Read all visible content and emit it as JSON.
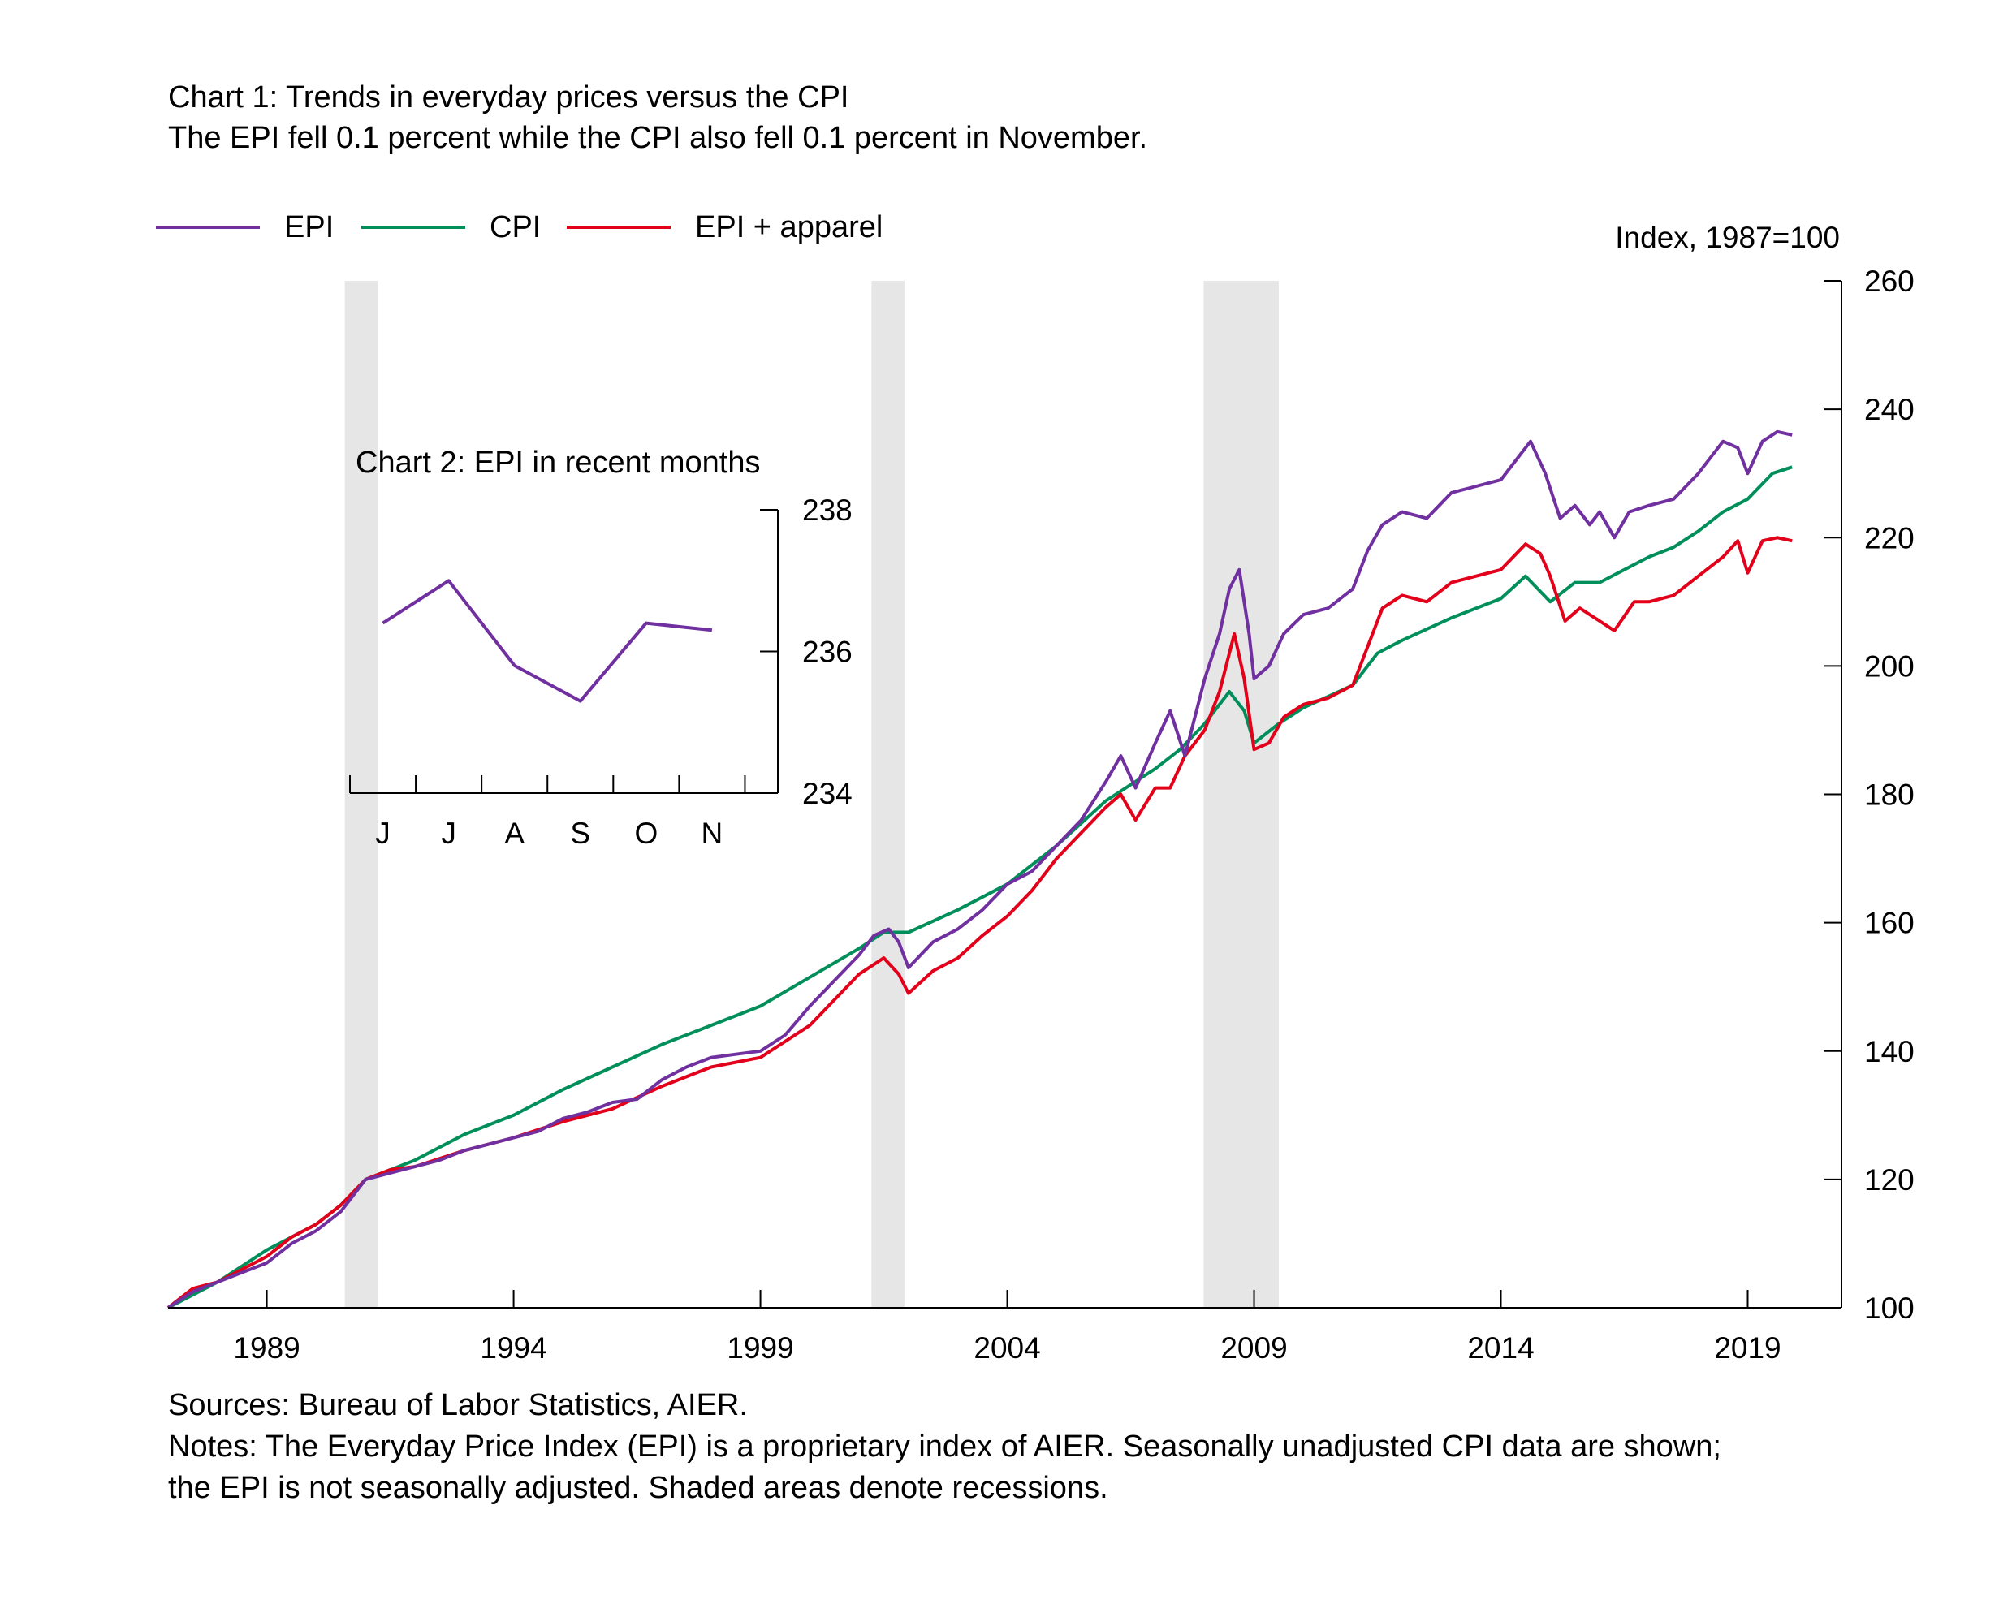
{
  "header": {
    "title": "Chart 1: Trends in everyday prices versus the CPI",
    "subtitle": "The EPI fell 0.1 percent while the CPI also fell 0.1 percent in November."
  },
  "footer": {
    "sources": "Sources: Bureau of Labor Statistics, AIER.",
    "notes_line1": "Notes: The Everyday Price Index (EPI) is a proprietary index of AIER. Seasonally unadjusted CPI data are shown;",
    "notes_line2": "the EPI is not seasonally adjusted. Shaded areas denote recessions."
  },
  "colors": {
    "epi": "#7030a0",
    "cpi": "#008f5a",
    "epi_apparel": "#e2001a",
    "recession": "#e6e6e6",
    "axis": "#000000"
  },
  "chart_data": [
    {
      "type": "line",
      "title": "Chart 1: Trends in everyday prices versus the CPI",
      "ylabel": "Index, 1987=100",
      "xlabel": "",
      "xlim": [
        1987.0,
        2020.9
      ],
      "ylim": [
        100,
        260
      ],
      "x_ticks": [
        1989,
        1994,
        1999,
        2004,
        2009,
        2014,
        2019
      ],
      "x_tick_labels": [
        "1989",
        "1994",
        "1999",
        "2004",
        "2009",
        "2014",
        "2019"
      ],
      "y_ticks": [
        100,
        120,
        140,
        160,
        180,
        200,
        220,
        240,
        260
      ],
      "y_tick_labels": [
        "100",
        "120",
        "140",
        "160",
        "180",
        "200",
        "220",
        "240",
        "260"
      ],
      "legend_position": "top-left",
      "grid": false,
      "recessions": [
        {
          "start": 1990.58,
          "end": 1991.25
        },
        {
          "start": 2001.25,
          "end": 2001.92
        },
        {
          "start": 2007.98,
          "end": 2009.5
        }
      ],
      "series": [
        {
          "name": "EPI",
          "color": "#7030a0",
          "points": [
            [
              1987.0,
              100.0
            ],
            [
              1987.5,
              102.5
            ],
            [
              1988.0,
              104.0
            ],
            [
              1988.5,
              105.5
            ],
            [
              1989.0,
              107.0
            ],
            [
              1989.5,
              110.0
            ],
            [
              1990.0,
              112.0
            ],
            [
              1990.5,
              115.0
            ],
            [
              1991.0,
              120.0
            ],
            [
              1991.5,
              121.0
            ],
            [
              1992.0,
              122.0
            ],
            [
              1992.5,
              123.0
            ],
            [
              1993.0,
              124.5
            ],
            [
              1993.5,
              125.5
            ],
            [
              1994.0,
              126.5
            ],
            [
              1994.5,
              127.5
            ],
            [
              1995.0,
              129.5
            ],
            [
              1995.5,
              130.5
            ],
            [
              1996.0,
              132.0
            ],
            [
              1996.5,
              132.5
            ],
            [
              1997.0,
              135.5
            ],
            [
              1997.5,
              137.5
            ],
            [
              1998.0,
              139.0
            ],
            [
              1998.5,
              139.5
            ],
            [
              1999.0,
              140.0
            ],
            [
              1999.5,
              142.5
            ],
            [
              2000.0,
              147.0
            ],
            [
              2000.5,
              151.0
            ],
            [
              2001.0,
              155.0
            ],
            [
              2001.3,
              158.0
            ],
            [
              2001.6,
              159.0
            ],
            [
              2001.8,
              157.0
            ],
            [
              2002.0,
              153.0
            ],
            [
              2002.5,
              157.0
            ],
            [
              2003.0,
              159.0
            ],
            [
              2003.5,
              162.0
            ],
            [
              2004.0,
              166.0
            ],
            [
              2004.5,
              168.0
            ],
            [
              2005.0,
              172.0
            ],
            [
              2005.5,
              176.0
            ],
            [
              2006.0,
              182.0
            ],
            [
              2006.3,
              186.0
            ],
            [
              2006.6,
              181.0
            ],
            [
              2007.0,
              188.0
            ],
            [
              2007.3,
              193.0
            ],
            [
              2007.6,
              186.0
            ],
            [
              2008.0,
              198.0
            ],
            [
              2008.3,
              205.0
            ],
            [
              2008.5,
              212.0
            ],
            [
              2008.7,
              215.0
            ],
            [
              2008.9,
              205.0
            ],
            [
              2009.0,
              198.0
            ],
            [
              2009.3,
              200.0
            ],
            [
              2009.6,
              205.0
            ],
            [
              2010.0,
              208.0
            ],
            [
              2010.5,
              209.0
            ],
            [
              2011.0,
              212.0
            ],
            [
              2011.3,
              218.0
            ],
            [
              2011.6,
              222.0
            ],
            [
              2012.0,
              224.0
            ],
            [
              2012.5,
              223.0
            ],
            [
              2013.0,
              227.0
            ],
            [
              2013.5,
              228.0
            ],
            [
              2014.0,
              229.0
            ],
            [
              2014.3,
              232.0
            ],
            [
              2014.6,
              235.0
            ],
            [
              2014.9,
              230.0
            ],
            [
              2015.2,
              223.0
            ],
            [
              2015.5,
              225.0
            ],
            [
              2015.8,
              222.0
            ],
            [
              2016.0,
              224.0
            ],
            [
              2016.3,
              220.0
            ],
            [
              2016.6,
              224.0
            ],
            [
              2017.0,
              225.0
            ],
            [
              2017.5,
              226.0
            ],
            [
              2018.0,
              230.0
            ],
            [
              2018.5,
              235.0
            ],
            [
              2018.8,
              234.0
            ],
            [
              2019.0,
              230.0
            ],
            [
              2019.3,
              235.0
            ],
            [
              2019.6,
              236.5
            ],
            [
              2019.9,
              236.0
            ]
          ]
        },
        {
          "name": "CPI",
          "color": "#008f5a",
          "points": [
            [
              1987.0,
              100.0
            ],
            [
              1988.0,
              104.0
            ],
            [
              1989.0,
              109.0
            ],
            [
              1990.0,
              113.0
            ],
            [
              1990.5,
              116.0
            ],
            [
              1991.0,
              120.0
            ],
            [
              1992.0,
              123.0
            ],
            [
              1993.0,
              127.0
            ],
            [
              1994.0,
              130.0
            ],
            [
              1995.0,
              134.0
            ],
            [
              1996.0,
              137.5
            ],
            [
              1997.0,
              141.0
            ],
            [
              1998.0,
              144.0
            ],
            [
              1999.0,
              147.0
            ],
            [
              2000.0,
              151.5
            ],
            [
              2001.0,
              156.0
            ],
            [
              2001.5,
              158.5
            ],
            [
              2002.0,
              158.5
            ],
            [
              2003.0,
              162.0
            ],
            [
              2004.0,
              166.0
            ],
            [
              2005.0,
              172.0
            ],
            [
              2006.0,
              179.0
            ],
            [
              2007.0,
              184.0
            ],
            [
              2007.5,
              187.0
            ],
            [
              2008.0,
              191.0
            ],
            [
              2008.5,
              196.0
            ],
            [
              2008.8,
              193.0
            ],
            [
              2009.0,
              188.0
            ],
            [
              2009.5,
              191.0
            ],
            [
              2010.0,
              193.5
            ],
            [
              2011.0,
              197.0
            ],
            [
              2011.5,
              202.0
            ],
            [
              2012.0,
              204.0
            ],
            [
              2013.0,
              207.5
            ],
            [
              2014.0,
              210.5
            ],
            [
              2014.5,
              214.0
            ],
            [
              2015.0,
              210.0
            ],
            [
              2015.5,
              213.0
            ],
            [
              2016.0,
              213.0
            ],
            [
              2016.5,
              215.0
            ],
            [
              2017.0,
              217.0
            ],
            [
              2017.5,
              218.5
            ],
            [
              2018.0,
              221.0
            ],
            [
              2018.5,
              224.0
            ],
            [
              2019.0,
              226.0
            ],
            [
              2019.5,
              230.0
            ],
            [
              2019.9,
              231.0
            ]
          ]
        },
        {
          "name": "EPI + apparel",
          "color": "#e2001a",
          "points": [
            [
              1987.0,
              100.0
            ],
            [
              1987.5,
              103.0
            ],
            [
              1988.0,
              104.0
            ],
            [
              1988.5,
              106.0
            ],
            [
              1989.0,
              108.0
            ],
            [
              1989.5,
              111.0
            ],
            [
              1990.0,
              113.0
            ],
            [
              1990.5,
              116.0
            ],
            [
              1991.0,
              120.0
            ],
            [
              1991.5,
              121.5
            ],
            [
              1992.0,
              122.0
            ],
            [
              1993.0,
              124.5
            ],
            [
              1994.0,
              126.5
            ],
            [
              1995.0,
              129.0
            ],
            [
              1996.0,
              131.0
            ],
            [
              1997.0,
              134.5
            ],
            [
              1998.0,
              137.5
            ],
            [
              1999.0,
              139.0
            ],
            [
              2000.0,
              144.0
            ],
            [
              2000.5,
              148.0
            ],
            [
              2001.0,
              152.0
            ],
            [
              2001.5,
              154.5
            ],
            [
              2001.8,
              152.0
            ],
            [
              2002.0,
              149.0
            ],
            [
              2002.5,
              152.5
            ],
            [
              2003.0,
              154.5
            ],
            [
              2003.5,
              158.0
            ],
            [
              2004.0,
              161.0
            ],
            [
              2004.5,
              165.0
            ],
            [
              2005.0,
              170.0
            ],
            [
              2005.5,
              174.0
            ],
            [
              2006.0,
              178.0
            ],
            [
              2006.3,
              180.0
            ],
            [
              2006.6,
              176.0
            ],
            [
              2007.0,
              181.0
            ],
            [
              2007.3,
              181.0
            ],
            [
              2007.6,
              186.0
            ],
            [
              2008.0,
              190.0
            ],
            [
              2008.3,
              196.0
            ],
            [
              2008.6,
              205.0
            ],
            [
              2008.8,
              198.0
            ],
            [
              2009.0,
              187.0
            ],
            [
              2009.3,
              188.0
            ],
            [
              2009.6,
              192.0
            ],
            [
              2010.0,
              194.0
            ],
            [
              2010.5,
              195.0
            ],
            [
              2011.0,
              197.0
            ],
            [
              2011.3,
              203.0
            ],
            [
              2011.6,
              209.0
            ],
            [
              2012.0,
              211.0
            ],
            [
              2012.5,
              210.0
            ],
            [
              2013.0,
              213.0
            ],
            [
              2013.5,
              214.0
            ],
            [
              2014.0,
              215.0
            ],
            [
              2014.5,
              219.0
            ],
            [
              2014.8,
              217.5
            ],
            [
              2015.0,
              214.0
            ],
            [
              2015.3,
              207.0
            ],
            [
              2015.6,
              209.0
            ],
            [
              2016.0,
              207.0
            ],
            [
              2016.3,
              205.5
            ],
            [
              2016.7,
              210.0
            ],
            [
              2017.0,
              210.0
            ],
            [
              2017.5,
              211.0
            ],
            [
              2018.0,
              214.0
            ],
            [
              2018.5,
              217.0
            ],
            [
              2018.8,
              219.5
            ],
            [
              2019.0,
              214.5
            ],
            [
              2019.3,
              219.5
            ],
            [
              2019.6,
              220.0
            ],
            [
              2019.9,
              219.5
            ]
          ]
        }
      ]
    },
    {
      "type": "line",
      "title": "Chart 2: EPI in recent months",
      "xlabel": "",
      "ylabel": "",
      "categories": [
        "J",
        "J",
        "A",
        "S",
        "O",
        "N"
      ],
      "ylim": [
        234,
        238
      ],
      "y_ticks": [
        234,
        236,
        238
      ],
      "y_tick_labels": [
        "234",
        "236",
        "238"
      ],
      "grid": false,
      "series": [
        {
          "name": "EPI",
          "color": "#7030a0",
          "values": [
            236.4,
            237.0,
            235.8,
            235.3,
            236.4,
            236.3
          ]
        }
      ]
    }
  ]
}
